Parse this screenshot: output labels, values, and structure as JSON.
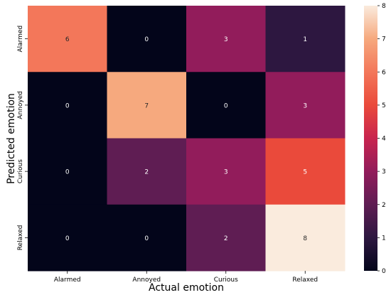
{
  "chart_data": {
    "type": "heatmap",
    "xlabel": "Actual emotion",
    "ylabel": "Predicted emotion",
    "x_categories": [
      "Alarmed",
      "Annoyed",
      "Curious",
      "Relaxed"
    ],
    "y_categories": [
      "Alarmed",
      "Annoyed",
      "Curious",
      "Relaxed"
    ],
    "values": [
      [
        6,
        0,
        3,
        1
      ],
      [
        0,
        7,
        0,
        3
      ],
      [
        0,
        2,
        3,
        5
      ],
      [
        0,
        0,
        2,
        8
      ]
    ],
    "colorbar": {
      "min": 0,
      "max": 8,
      "ticks": [
        "0",
        "1",
        "2",
        "3",
        "4",
        "5",
        "6",
        "7",
        "8"
      ]
    },
    "colormap": [
      "#03051a",
      "#2d1740",
      "#5f1d53",
      "#921c5b",
      "#c8244e",
      "#ea4a3b",
      "#f3775a",
      "#f6a97e",
      "#faebdd"
    ]
  }
}
